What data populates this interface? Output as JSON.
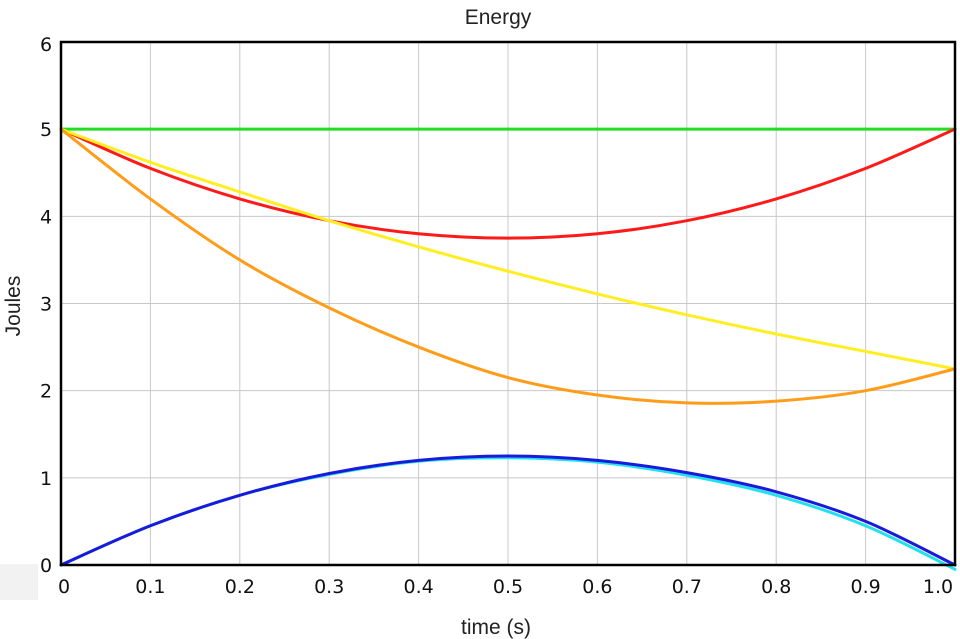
{
  "chart_data": {
    "type": "line",
    "title": "Energy",
    "xlabel": "time (s)",
    "ylabel": "Joules",
    "xlim": [
      0,
      1.0
    ],
    "ylim": [
      0,
      6
    ],
    "x_ticks": [
      "0",
      "0.1",
      "0.2",
      "0.3",
      "0.4",
      "0.5",
      "0.6",
      "0.7",
      "0.8",
      "0.9",
      "1.0"
    ],
    "y_ticks": [
      "0",
      "1",
      "2",
      "3",
      "4",
      "5",
      "6"
    ],
    "grid": true,
    "x": [
      0,
      0.1,
      0.2,
      0.3,
      0.4,
      0.5,
      0.6,
      0.7,
      0.8,
      0.9,
      1.0
    ],
    "series": [
      {
        "color": "#22dd22",
        "values": [
          5.0,
          5.0,
          5.0,
          5.0,
          5.0,
          5.0,
          5.0,
          5.0,
          5.0,
          5.0,
          5.0
        ]
      },
      {
        "color": "#ff1a1a",
        "values": [
          5.0,
          4.55,
          4.2,
          3.95,
          3.8,
          3.75,
          3.8,
          3.95,
          4.2,
          4.55,
          5.0
        ]
      },
      {
        "color": "#ffee22",
        "values": [
          5.0,
          4.62,
          4.28,
          3.95,
          3.65,
          3.37,
          3.11,
          2.87,
          2.65,
          2.45,
          2.25
        ]
      },
      {
        "color": "#ff9d1a",
        "values": [
          5.0,
          4.2,
          3.5,
          2.95,
          2.5,
          2.15,
          1.95,
          1.86,
          1.88,
          2.0,
          2.25
        ]
      },
      {
        "color": "#1a1adb",
        "values": [
          0,
          0.45,
          0.8,
          1.05,
          1.2,
          1.25,
          1.2,
          1.06,
          0.84,
          0.5,
          0
        ]
      },
      {
        "color": "#22e0ee",
        "values": [
          0,
          0.45,
          0.8,
          1.04,
          1.19,
          1.23,
          1.18,
          1.03,
          0.8,
          0.45,
          -0.05
        ]
      }
    ]
  }
}
